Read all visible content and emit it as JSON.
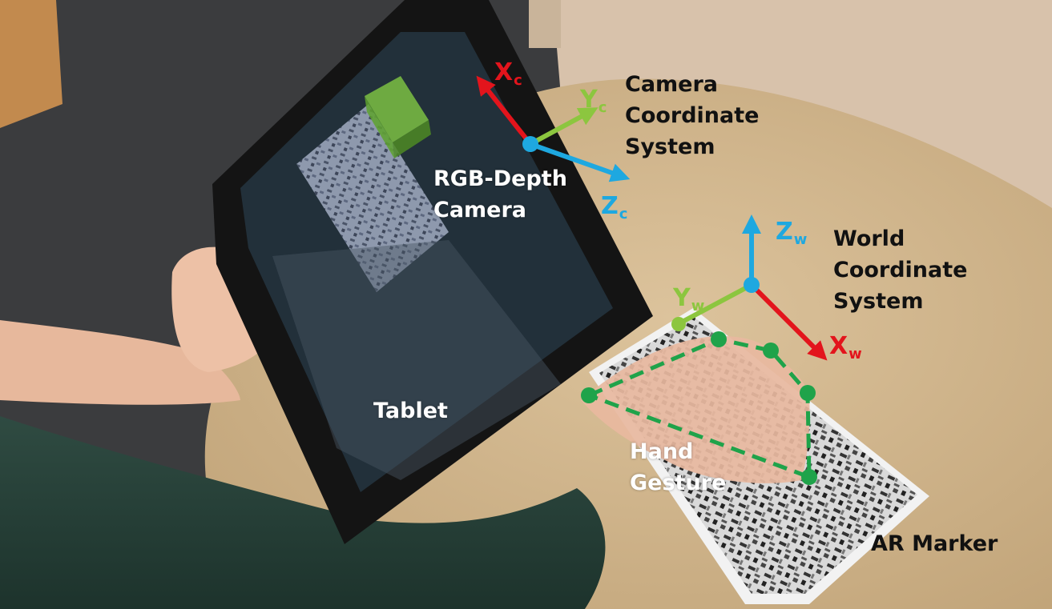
{
  "labels": {
    "camera_system": [
      "Camera",
      "Coordinate",
      "System"
    ],
    "rgb_depth_camera": [
      "RGB-Depth",
      "Camera"
    ],
    "world_system": [
      "World",
      "Coordinate",
      "System"
    ],
    "tablet": "Tablet",
    "hand_gesture": [
      "Hand",
      "Gesture"
    ],
    "ar_marker": "AR Marker"
  },
  "axes": {
    "camera": {
      "x": {
        "letter": "X",
        "sub": "c"
      },
      "y": {
        "letter": "Y",
        "sub": "c"
      },
      "z": {
        "letter": "Z",
        "sub": "c"
      }
    },
    "world": {
      "x": {
        "letter": "X",
        "sub": "w"
      },
      "y": {
        "letter": "Y",
        "sub": "w"
      },
      "z": {
        "letter": "Z",
        "sub": "w"
      }
    }
  },
  "colors": {
    "x_axis": "#e3141c",
    "y_axis": "#8cc63f",
    "z_axis": "#1ea8e0",
    "gesture": "#1fa34a",
    "dark_text": "#111111",
    "light_text": "#ffffff"
  }
}
